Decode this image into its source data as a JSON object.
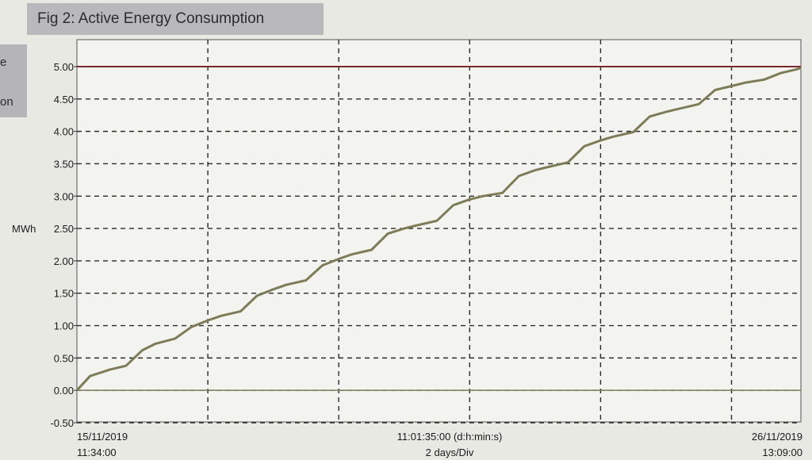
{
  "figure": {
    "title": "Fig 2: Active Energy Consumption",
    "side_labels": [
      "e",
      "on"
    ]
  },
  "chart_data": {
    "type": "line",
    "title": "Fig 2: Active Energy Consumption",
    "ylabel": "MWh",
    "ylim": [
      -0.5,
      5.0
    ],
    "yticks": [
      "5.00",
      "4.50",
      "4.00",
      "3.50",
      "3.00",
      "2.50",
      "2.00",
      "1.50",
      "1.00",
      "0.50",
      "0.00",
      "-0.50"
    ],
    "ytick_values": [
      5.0,
      4.5,
      4.0,
      3.5,
      3.0,
      2.5,
      2.0,
      1.5,
      1.0,
      0.5,
      0.0,
      -0.5
    ],
    "xlim": [
      0,
      11.06
    ],
    "x_start_label": [
      "15/11/2019",
      "11:34:00"
    ],
    "x_center_label": [
      "11:01:35:00 (d:h:min:s)",
      "2 days/Div"
    ],
    "x_end_label": [
      "26/11/2019",
      "13:09:00"
    ],
    "grid": true,
    "colors": {
      "line": "#7d7b58",
      "limit": "#7a2a2e",
      "zero": "#7d7b58",
      "grid": "#2a2a2a",
      "plot_bg": "#f3f3ef"
    },
    "series": [
      {
        "x": [
          0,
          0.2,
          0.5,
          0.75,
          1.0,
          1.2,
          1.5,
          1.75,
          2.0,
          2.2,
          2.5,
          2.75,
          3.0,
          3.2,
          3.5,
          3.75,
          4.0,
          4.2,
          4.5,
          4.75,
          5.0,
          5.2,
          5.5,
          5.75,
          6.0,
          6.2,
          6.5,
          6.75,
          7.0,
          7.2,
          7.5,
          7.75,
          8.0,
          8.2,
          8.5,
          8.75,
          9.0,
          9.2,
          9.5,
          9.75,
          10.0,
          10.2,
          10.5,
          10.75,
          11.0,
          11.06
        ],
        "y": [
          0.0,
          0.22,
          0.32,
          0.38,
          0.62,
          0.72,
          0.8,
          0.98,
          1.08,
          1.15,
          1.22,
          1.46,
          1.56,
          1.63,
          1.7,
          1.93,
          2.03,
          2.1,
          2.17,
          2.42,
          2.5,
          2.55,
          2.62,
          2.86,
          2.95,
          3.0,
          3.05,
          3.31,
          3.4,
          3.45,
          3.52,
          3.77,
          3.86,
          3.92,
          3.99,
          4.23,
          4.3,
          4.35,
          4.42,
          4.64,
          4.7,
          4.75,
          4.8,
          4.9,
          4.96,
          4.98
        ]
      }
    ]
  }
}
